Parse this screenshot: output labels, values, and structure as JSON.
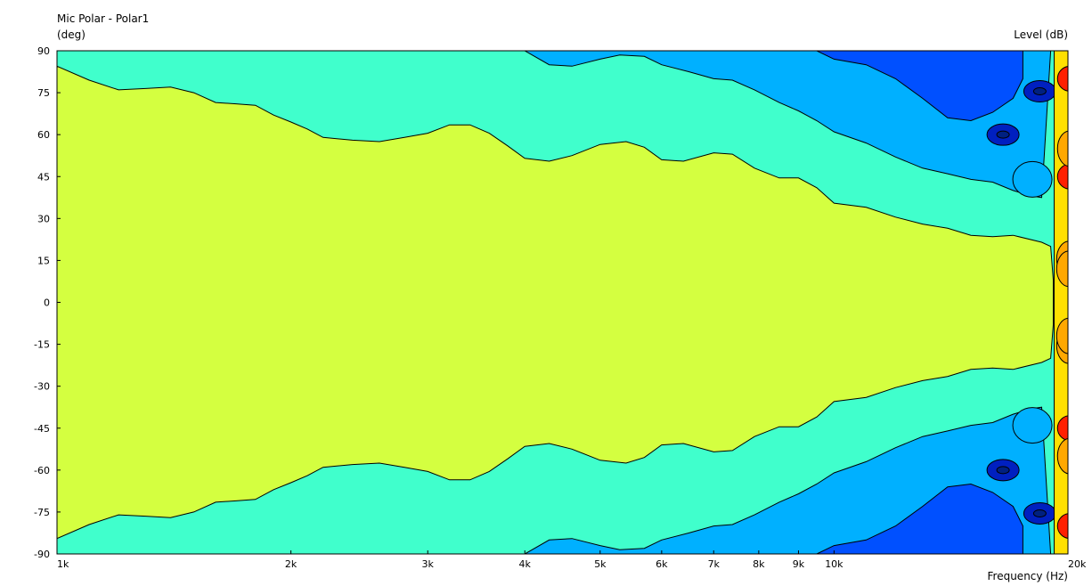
{
  "chart_data": {
    "type": "heatmap",
    "title": "Mic Polar - Polar1",
    "ylabel": "(deg)",
    "zlabel": "Level (dB)",
    "xlabel": "Frequency (Hz)",
    "x_scale": "log",
    "xlim": [
      1000,
      20000
    ],
    "ylim": [
      -90,
      90
    ],
    "x_ticks": [
      {
        "value": 1000,
        "label": "1k"
      },
      {
        "value": 2000,
        "label": "2k"
      },
      {
        "value": 3000,
        "label": "3k"
      },
      {
        "value": 4000,
        "label": "4k"
      },
      {
        "value": 5000,
        "label": "5k"
      },
      {
        "value": 6000,
        "label": "6k"
      },
      {
        "value": 7000,
        "label": "7k"
      },
      {
        "value": 8000,
        "label": "8k"
      },
      {
        "value": 9000,
        "label": "9k"
      },
      {
        "value": 10000,
        "label": "10k"
      },
      {
        "value": 20000,
        "label": "20k"
      }
    ],
    "y_ticks": [
      {
        "value": 90,
        "label": "90"
      },
      {
        "value": 75,
        "label": "75"
      },
      {
        "value": 60,
        "label": "60"
      },
      {
        "value": 45,
        "label": "45"
      },
      {
        "value": 30,
        "label": "30"
      },
      {
        "value": 15,
        "label": "15"
      },
      {
        "value": 0,
        "label": "0"
      },
      {
        "value": -15,
        "label": "-15"
      },
      {
        "value": -30,
        "label": "-30"
      },
      {
        "value": -45,
        "label": "-45"
      },
      {
        "value": -60,
        "label": "-60"
      },
      {
        "value": -75,
        "label": "-75"
      },
      {
        "value": -90,
        "label": "-90"
      }
    ],
    "colors": {
      "bg": "#40ffcc",
      "main": "#d4ff40",
      "light_blue": "#00b0ff",
      "mid_blue": "#0050ff",
      "dark_blue": "#0020c0",
      "navy": "#002080",
      "yellow": "#ffe000",
      "orange": "#ffa800",
      "red": "#ff2000",
      "dark_red": "#c00000"
    },
    "regions": {
      "main_boundary": [
        [
          1000,
          84.5
        ],
        [
          1100,
          79.5
        ],
        [
          1200,
          76
        ],
        [
          1300,
          76.5
        ],
        [
          1400,
          77
        ],
        [
          1500,
          75
        ],
        [
          1600,
          71.5
        ],
        [
          1700,
          71
        ],
        [
          1800,
          70.5
        ],
        [
          1900,
          67
        ],
        [
          2000,
          64.5
        ],
        [
          2100,
          62
        ],
        [
          2200,
          59
        ],
        [
          2400,
          58
        ],
        [
          2600,
          57.5
        ],
        [
          2800,
          59
        ],
        [
          3000,
          60.5
        ],
        [
          3200,
          63.5
        ],
        [
          3400,
          63.5
        ],
        [
          3600,
          60.5
        ],
        [
          3800,
          56
        ],
        [
          4000,
          51.5
        ],
        [
          4300,
          50.5
        ],
        [
          4600,
          52.5
        ],
        [
          5000,
          56.5
        ],
        [
          5400,
          57.5
        ],
        [
          5700,
          55.5
        ],
        [
          6000,
          51
        ],
        [
          6400,
          50.5
        ],
        [
          7000,
          53.5
        ],
        [
          7400,
          53
        ],
        [
          7900,
          48
        ],
        [
          8500,
          44.5
        ],
        [
          9000,
          44.5
        ],
        [
          9500,
          41
        ],
        [
          10000,
          35.5
        ],
        [
          11000,
          34
        ],
        [
          12000,
          30.5
        ],
        [
          13000,
          28
        ],
        [
          14000,
          26.5
        ],
        [
          15000,
          24
        ],
        [
          16000,
          23.5
        ],
        [
          17000,
          24
        ],
        [
          18500,
          21.5
        ],
        [
          19000,
          20
        ]
      ],
      "light_blue_boundary": [
        [
          4000,
          90
        ],
        [
          4300,
          85
        ],
        [
          4600,
          84.5
        ],
        [
          5000,
          87
        ],
        [
          5300,
          88.5
        ],
        [
          5700,
          88
        ],
        [
          6000,
          85
        ],
        [
          6500,
          82.5
        ],
        [
          7000,
          80
        ],
        [
          7400,
          79.5
        ],
        [
          7900,
          76
        ],
        [
          8500,
          71.5
        ],
        [
          9000,
          68.5
        ],
        [
          9500,
          65
        ],
        [
          10000,
          61
        ],
        [
          11000,
          57
        ],
        [
          12000,
          52
        ],
        [
          13000,
          48
        ],
        [
          14000,
          46
        ],
        [
          15000,
          44
        ],
        [
          16000,
          43
        ],
        [
          17000,
          40
        ],
        [
          18000,
          38
        ],
        [
          18500,
          37.5
        ],
        [
          19000,
          90
        ]
      ],
      "mid_blue_boundary": [
        [
          9500,
          90
        ],
        [
          10000,
          87
        ],
        [
          11000,
          85
        ],
        [
          12000,
          80
        ],
        [
          13000,
          73
        ],
        [
          14000,
          66
        ],
        [
          15000,
          65
        ],
        [
          16000,
          68
        ],
        [
          17000,
          73
        ],
        [
          17500,
          80
        ],
        [
          17500,
          90
        ]
      ],
      "navy_spots": [
        {
          "x": 16500,
          "y": 60,
          "r": 1
        },
        {
          "x": 18400,
          "y": 75.5,
          "r": 1
        }
      ],
      "right_edge_lobes": [
        {
          "x": 19650,
          "y": 15.5,
          "color": "orange"
        },
        {
          "x": 19650,
          "y": -12,
          "color": "orange"
        },
        {
          "x": 19700,
          "y": 45,
          "color": "red"
        },
        {
          "x": 19700,
          "y": 80,
          "color": "red"
        },
        {
          "x": 19700,
          "y": 55,
          "color": "orange"
        }
      ]
    }
  }
}
